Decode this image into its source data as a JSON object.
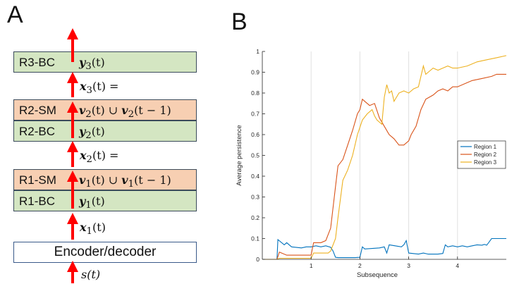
{
  "panel_a": {
    "letter": "A",
    "blocks": [
      {
        "label": "R3-BC",
        "math_bold": "y",
        "math_sub": "3",
        "math_rest": "(t)"
      },
      {
        "label": "R2-SM",
        "math_bold": "v",
        "math_sub": "2",
        "math_rest": "(t) ∪ ",
        "math_bold2": "v",
        "math_sub2": "2",
        "math_rest2": "(t − 1)"
      },
      {
        "label": "R2-BC",
        "math_bold": "y",
        "math_sub": "2",
        "math_rest": "(t)"
      },
      {
        "label": "R1-SM",
        "math_bold": "v",
        "math_sub": "1",
        "math_rest": "(t) ∪ ",
        "math_bold2": "v",
        "math_sub2": "1",
        "math_rest2": "(t − 1)"
      },
      {
        "label": "R1-BC",
        "math_bold": "y",
        "math_sub": "1",
        "math_rest": "(t)"
      }
    ],
    "between_labels": [
      {
        "bold": "x",
        "sub": "3",
        "rest": "(t) ="
      },
      {
        "bold": "x",
        "sub": "2",
        "rest": "(t) ="
      },
      {
        "bold": "x",
        "sub": "1",
        "rest": "(t)"
      }
    ],
    "encoder_label": "Encoder/decoder",
    "input_label": "s(t)",
    "arrow_color": "#ff0000"
  },
  "panel_b": {
    "letter": "B"
  },
  "chart_data": {
    "type": "line",
    "title": "",
    "xlabel": "Subsequence",
    "ylabel": "Average persistence",
    "xlim": [
      0,
      5
    ],
    "ylim": [
      0,
      1
    ],
    "xticks": [
      1,
      2,
      3,
      4
    ],
    "yticks": [
      0,
      0.1,
      0.2,
      0.3,
      0.4,
      0.5,
      0.6,
      0.7,
      0.8,
      0.9,
      1
    ],
    "ytick_labels": [
      "0",
      "0.1",
      "0.2",
      "0.3",
      "0.4",
      "0.5",
      "0.6",
      "0.7",
      "0.8",
      "0.9",
      "1"
    ],
    "grid": "x",
    "legend_position": "right",
    "series": [
      {
        "name": "Region 1",
        "color": "#0072bd",
        "x": [
          0,
          0.3,
          0.32,
          0.45,
          0.5,
          0.6,
          0.8,
          0.9,
          1.0,
          1.1,
          1.2,
          1.3,
          1.4,
          1.45,
          1.5,
          1.55,
          1.9,
          2.0,
          2.05,
          2.1,
          2.4,
          2.5,
          2.55,
          2.6,
          2.85,
          2.9,
          2.95,
          3.0,
          3.2,
          3.3,
          3.4,
          3.6,
          3.7,
          3.75,
          3.8,
          3.9,
          4.0,
          4.1,
          4.2,
          4.3,
          4.4,
          4.5,
          4.55,
          4.6,
          4.7,
          4.8,
          5.0
        ],
        "y": [
          0,
          0,
          0.095,
          0.07,
          0.08,
          0.06,
          0.055,
          0.06,
          0.06,
          0.065,
          0.06,
          0.065,
          0.058,
          0.04,
          0.01,
          0.008,
          0.008,
          0.01,
          0.06,
          0.05,
          0.055,
          0.06,
          0.03,
          0.07,
          0.06,
          0.07,
          0.09,
          0.03,
          0.025,
          0.03,
          0.025,
          0.025,
          0.028,
          0.07,
          0.06,
          0.065,
          0.06,
          0.065,
          0.06,
          0.065,
          0.07,
          0.068,
          0.072,
          0.068,
          0.1,
          0.1,
          0.1
        ]
      },
      {
        "name": "Region 2",
        "color": "#d95319",
        "x": [
          0,
          0.3,
          0.35,
          0.5,
          0.6,
          1.0,
          1.05,
          1.2,
          1.3,
          1.4,
          1.5,
          1.55,
          1.65,
          1.75,
          1.85,
          1.95,
          2.0,
          2.05,
          2.1,
          2.2,
          2.3,
          2.4,
          2.5,
          2.6,
          2.7,
          2.8,
          2.9,
          3.0,
          3.05,
          3.15,
          3.25,
          3.35,
          3.5,
          3.6,
          3.7,
          3.8,
          3.9,
          4.0,
          4.2,
          4.3,
          4.5,
          4.7,
          4.8,
          5.0
        ],
        "y": [
          0,
          0,
          0.035,
          0.02,
          0.02,
          0.02,
          0.08,
          0.08,
          0.09,
          0.15,
          0.35,
          0.45,
          0.48,
          0.55,
          0.62,
          0.7,
          0.72,
          0.77,
          0.76,
          0.74,
          0.75,
          0.68,
          0.64,
          0.6,
          0.58,
          0.55,
          0.55,
          0.57,
          0.6,
          0.64,
          0.72,
          0.77,
          0.79,
          0.81,
          0.82,
          0.81,
          0.83,
          0.83,
          0.85,
          0.86,
          0.87,
          0.88,
          0.89,
          0.89
        ]
      },
      {
        "name": "Region 3",
        "color": "#edb120",
        "x": [
          0,
          0.3,
          0.35,
          1.0,
          1.05,
          1.35,
          1.4,
          1.5,
          1.55,
          1.65,
          1.75,
          1.85,
          1.95,
          2.05,
          2.15,
          2.25,
          2.3,
          2.35,
          2.45,
          2.5,
          2.55,
          2.6,
          2.65,
          2.7,
          2.8,
          2.9,
          3.0,
          3.1,
          3.2,
          3.3,
          3.35,
          3.4,
          3.5,
          3.6,
          3.7,
          3.8,
          3.9,
          4.0,
          4.2,
          4.4,
          4.6,
          4.8,
          5.0
        ],
        "y": [
          0,
          0,
          0.005,
          0.005,
          0.03,
          0.03,
          0.04,
          0.1,
          0.2,
          0.38,
          0.43,
          0.5,
          0.6,
          0.67,
          0.7,
          0.72,
          0.69,
          0.67,
          0.65,
          0.78,
          0.84,
          0.8,
          0.81,
          0.76,
          0.8,
          0.81,
          0.8,
          0.82,
          0.83,
          0.93,
          0.89,
          0.9,
          0.92,
          0.91,
          0.92,
          0.93,
          0.92,
          0.92,
          0.93,
          0.95,
          0.96,
          0.97,
          0.98
        ]
      }
    ]
  }
}
